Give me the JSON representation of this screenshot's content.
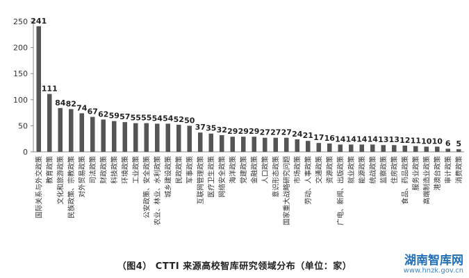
{
  "chart_data": {
    "type": "bar",
    "title": "",
    "xlabel": "",
    "ylabel": "",
    "ylim": [
      0,
      250
    ],
    "yticks": [
      0,
      50,
      100,
      150,
      200,
      250
    ],
    "grid": false,
    "bar_color": "#555555",
    "categories": [
      "国际关系与外交政策",
      "教育政策",
      "文化和旅游政策",
      "民族政策、宗教政策",
      "对外贸易政策",
      "司法政策",
      "财政政策",
      "科技政策",
      "环境政策",
      "工业政策",
      "公安政策、安全政策",
      "农业、林业、水利政策",
      "城乡建设政策",
      "民政政策",
      "军事政策",
      "互联网管理政策",
      "医疗卫生政策",
      "网络安全政策",
      "海洋政策",
      "党建政策",
      "金融政策",
      "人口政策",
      "意识形态政策",
      "国家重大战略研究问题",
      "市场政策",
      "劳动、人事政策",
      "交通政策",
      "资源政策",
      "广电、新闻、出版政策",
      "就业政策",
      "能源政策",
      "统战政策",
      "监察政策",
      "住房政策",
      "食品、药品政策",
      "服务业政策",
      "高端制造业政策",
      "港澳台政策",
      "审计政策",
      "消费政策"
    ],
    "values": [
      241,
      111,
      84,
      82,
      74,
      67,
      62,
      59,
      57,
      55,
      55,
      54,
      54,
      52,
      50,
      37,
      35,
      32,
      29,
      29,
      29,
      27,
      27,
      27,
      24,
      21,
      17,
      16,
      14,
      14,
      14,
      14,
      13,
      13,
      12,
      11,
      10,
      10,
      6,
      5
    ],
    "data_labels": [
      "241",
      "111",
      "84",
      "82",
      "74",
      "67",
      "62",
      "59",
      "57",
      "55",
      "55",
      "54",
      "54",
      "52",
      "50",
      "37",
      "35",
      "32",
      "29",
      "29",
      "29",
      "27",
      "27",
      "27",
      "24",
      "21",
      "17",
      "16",
      "14",
      "14",
      "14",
      "14",
      "13",
      "13",
      "12",
      "11",
      "10",
      "10",
      "6",
      "5"
    ]
  },
  "caption": "（图4）  CTTI 来源高校智库研究领域分布（单位：家）",
  "watermark": {
    "title": "湖南智库网",
    "url": "www.hnzk.gov.cn"
  }
}
